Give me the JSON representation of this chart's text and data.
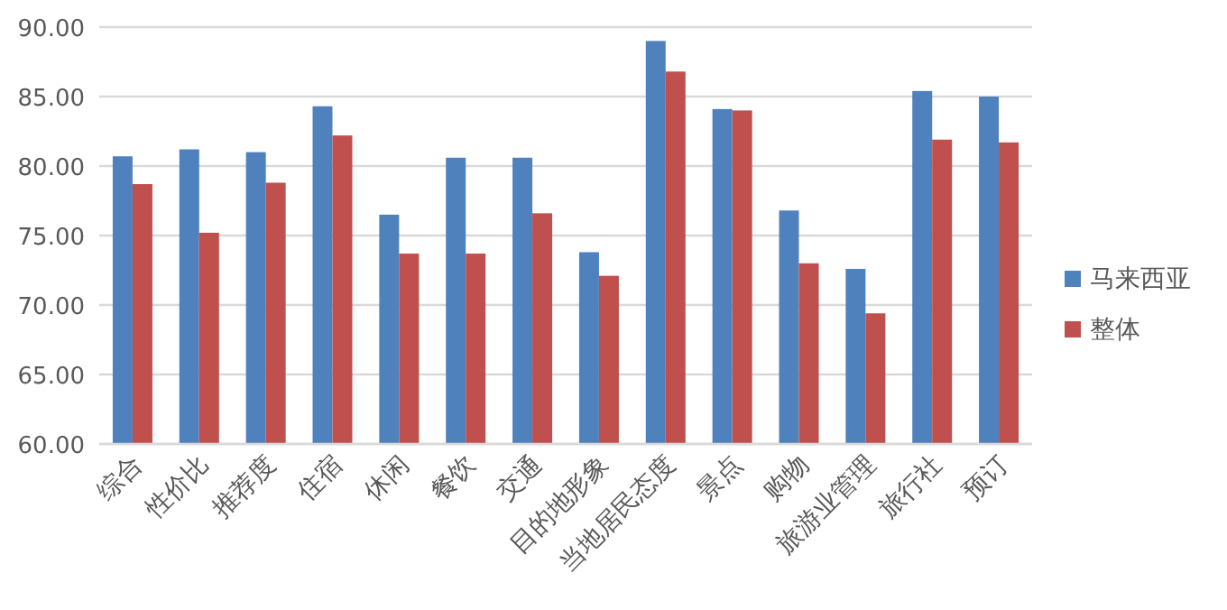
{
  "chart_data": {
    "type": "bar",
    "categories": [
      "综合",
      "性价比",
      "推荐度",
      "住宿",
      "休闲",
      "餐饮",
      "交通",
      "目的地形象",
      "当地居民态度",
      "景点",
      "购物",
      "旅游业管理",
      "旅行社",
      "预订"
    ],
    "series": [
      {
        "name": "马来西亚",
        "color": "#4f81bd",
        "values": [
          80.7,
          81.2,
          81.0,
          84.3,
          76.5,
          80.6,
          80.6,
          73.8,
          89.0,
          84.1,
          76.8,
          72.6,
          85.4,
          85.0
        ]
      },
      {
        "name": "整体",
        "color": "#c0504d",
        "values": [
          78.7,
          75.2,
          78.8,
          82.2,
          73.7,
          73.7,
          76.6,
          72.1,
          86.8,
          84.0,
          73.0,
          69.4,
          81.9,
          81.7
        ]
      }
    ],
    "ylim": [
      60,
      90
    ],
    "yticks": [
      {
        "value": 60,
        "label": "60.00"
      },
      {
        "value": 65,
        "label": "65.00"
      },
      {
        "value": 70,
        "label": "70.00"
      },
      {
        "value": 75,
        "label": "75.00"
      },
      {
        "value": 80,
        "label": "80.00"
      },
      {
        "value": 85,
        "label": "85.00"
      },
      {
        "value": 90,
        "label": "90.00"
      }
    ],
    "grid": "y",
    "legend": "right"
  }
}
